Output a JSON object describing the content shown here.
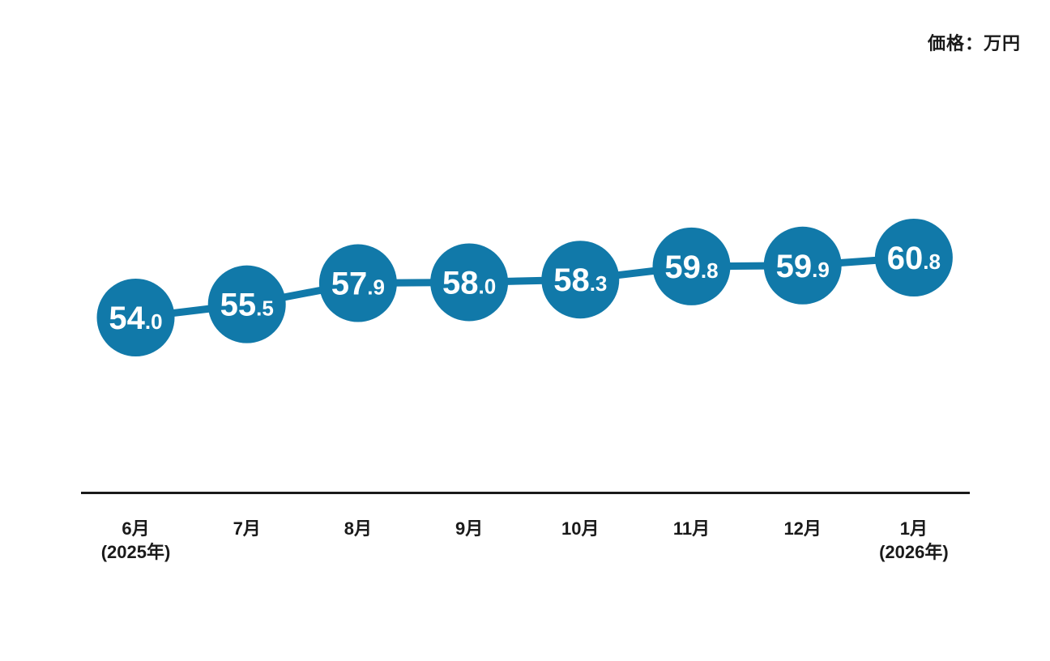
{
  "chart_data": {
    "type": "line",
    "title": "",
    "unit_label": "価格：万円",
    "categories": [
      {
        "label": "6月",
        "sublabel": "(2025年)"
      },
      {
        "label": "7月",
        "sublabel": ""
      },
      {
        "label": "8月",
        "sublabel": ""
      },
      {
        "label": "9月",
        "sublabel": ""
      },
      {
        "label": "10月",
        "sublabel": ""
      },
      {
        "label": "11月",
        "sublabel": ""
      },
      {
        "label": "12月",
        "sublabel": ""
      },
      {
        "label": "1月",
        "sublabel": "(2026年)"
      }
    ],
    "values": [
      54.0,
      55.5,
      57.9,
      58.0,
      58.3,
      59.8,
      59.9,
      60.8
    ],
    "xlabel": "",
    "ylabel": "価格（万円）",
    "ylim": [
      54.0,
      60.8
    ],
    "grid": false,
    "legend": false,
    "y_axis_shown": false,
    "point_color": "#1179a9",
    "value_text_color": "#ffffff",
    "axis_color": "#1a1a1a",
    "tick_label_color": "#1a1a1a"
  }
}
